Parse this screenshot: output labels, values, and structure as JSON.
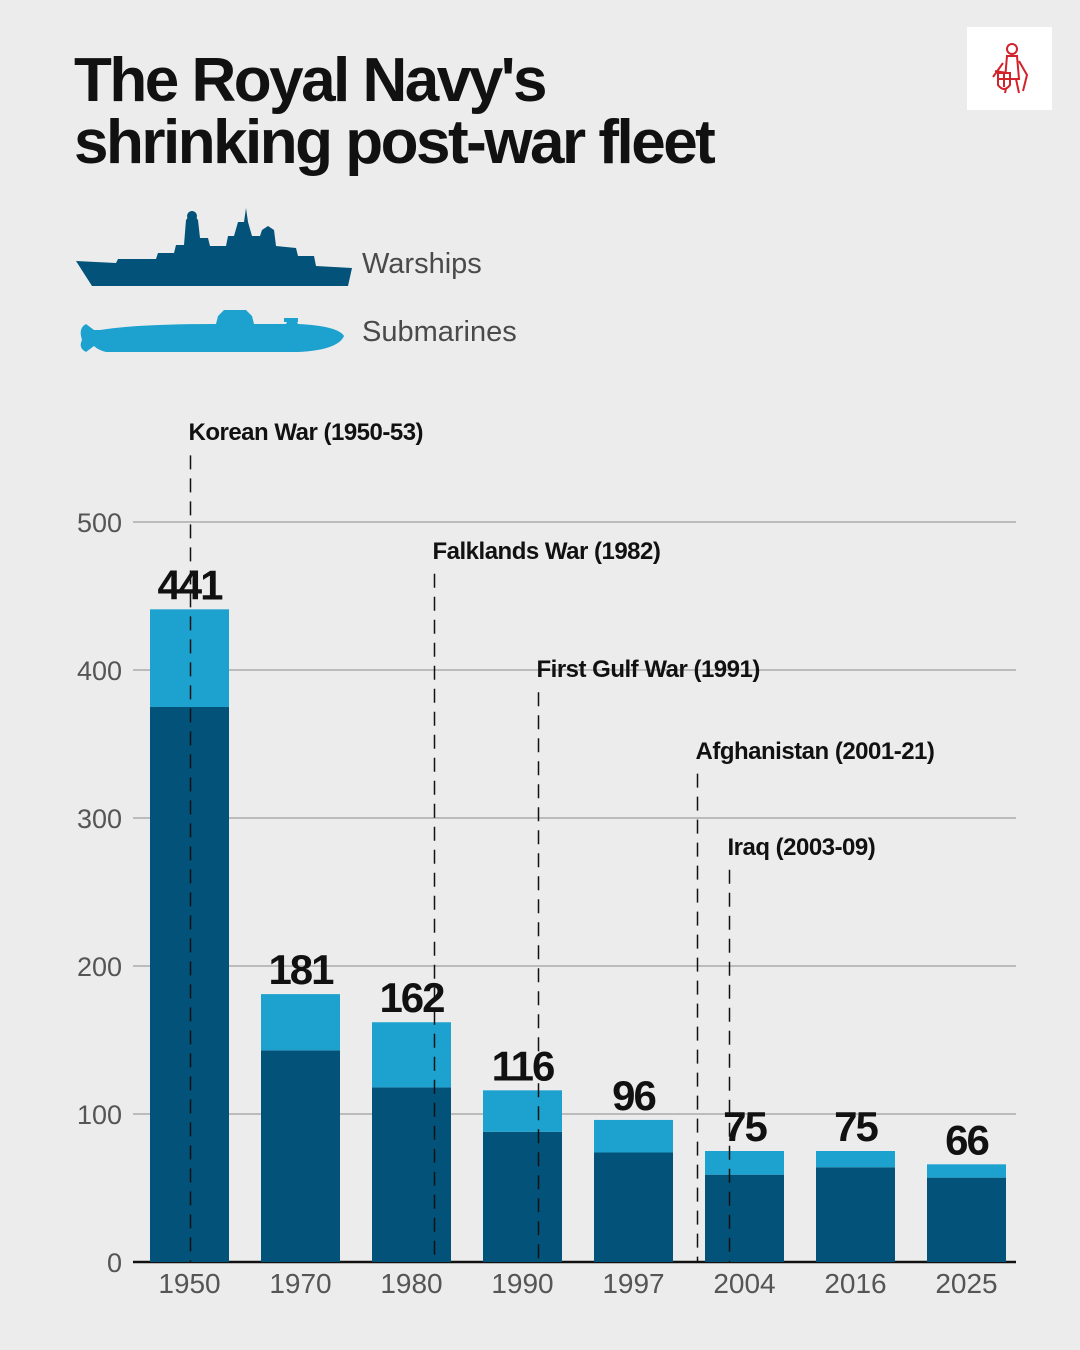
{
  "header": {
    "title_line1": "The Royal Navy's",
    "title_line2": "shrinking post-war fleet"
  },
  "logo": {
    "name": "crusader-shield-logo"
  },
  "legend": {
    "warships_label": "Warships",
    "submarines_label": "Submarines",
    "warships_icon": "warship-icon",
    "submarines_icon": "submarine-icon"
  },
  "colors": {
    "warships": "#02527a",
    "submarines": "#1da2cf",
    "background": "#ececec",
    "logo_red": "#d2232a"
  },
  "chart_data": {
    "type": "bar",
    "stacked": true,
    "title": "The Royal Navy's shrinking post-war fleet",
    "categories": [
      "1950",
      "1970",
      "1980",
      "1990",
      "1997",
      "2004",
      "2016",
      "2025"
    ],
    "series": [
      {
        "name": "Warships",
        "values": [
          375,
          143,
          118,
          88,
          74,
          59,
          64,
          57
        ]
      },
      {
        "name": "Submarines",
        "values": [
          66,
          38,
          44,
          28,
          22,
          16,
          11,
          9
        ]
      }
    ],
    "totals": [
      441,
      181,
      162,
      116,
      96,
      75,
      75,
      66
    ],
    "total_labels": [
      "441",
      "181",
      "162",
      "116",
      "96",
      "75",
      "75",
      "66"
    ],
    "ylim": [
      0,
      500
    ],
    "yticks": [
      0,
      100,
      200,
      300,
      400,
      500
    ],
    "ytick_labels": [
      "0",
      "100",
      "200",
      "300",
      "400",
      "500"
    ],
    "grid": true,
    "xlabel": "",
    "ylabel": "",
    "annotations": [
      {
        "label": "Korean War (1950-53)",
        "year": 1950,
        "level": 545
      },
      {
        "label": "Falklands War (1982)",
        "year": 1982,
        "level": 465
      },
      {
        "label": "First Gulf War (1991)",
        "year": 1991,
        "level": 385
      },
      {
        "label": "Afghanistan (2001-21)",
        "year": 2001,
        "level": 330
      },
      {
        "label": "Iraq (2003-09)",
        "year": 2003,
        "level": 265
      }
    ]
  }
}
